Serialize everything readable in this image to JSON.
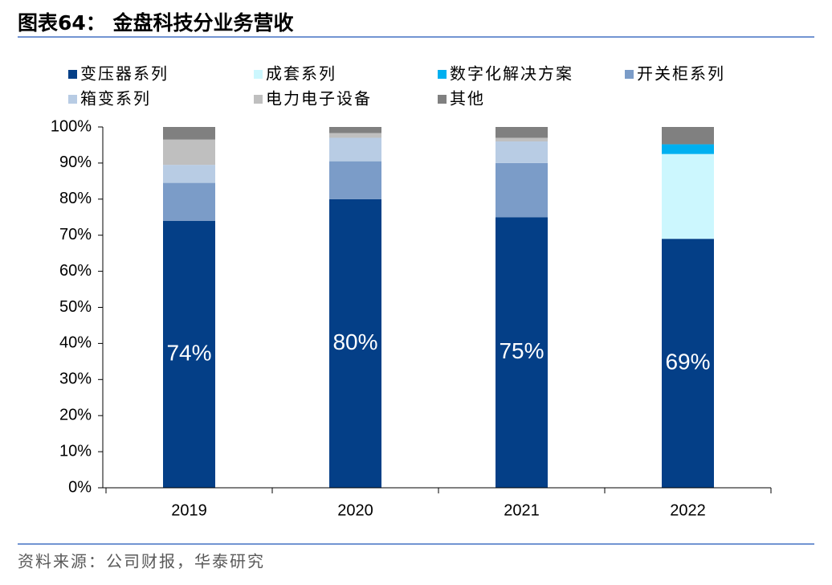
{
  "chart_data": {
    "type": "stacked_bar",
    "title": "图表64： 金盘科技分业务营收",
    "source": "资料来源：公司财报，华泰研究",
    "categories": [
      "2019",
      "2020",
      "2021",
      "2022"
    ],
    "series": [
      {
        "name": "变压器系列",
        "color": "#043f87",
        "values": [
          74,
          80,
          75,
          69
        ],
        "value_labels": [
          "74%",
          "80%",
          "75%",
          "69%"
        ]
      },
      {
        "name": "成套系列",
        "color": "#ccf7fe",
        "values": [
          null,
          null,
          null,
          23.5
        ]
      },
      {
        "name": "数字化解决方案",
        "color": "#00b0f0",
        "values": [
          null,
          null,
          null,
          2.7
        ]
      },
      {
        "name": "开关柜系列",
        "color": "#7b9cc8",
        "values": [
          10.5,
          10.5,
          15,
          null
        ]
      },
      {
        "name": "箱变系列",
        "color": "#b8cce4",
        "values": [
          5,
          6.5,
          6,
          null
        ]
      },
      {
        "name": "电力电子设备",
        "color": "#bfbfbf",
        "values": [
          7,
          1.3,
          1,
          null
        ]
      },
      {
        "name": "其他",
        "color": "#808080",
        "values": [
          3.5,
          1.7,
          3,
          4.8
        ]
      }
    ],
    "ylim": [
      0,
      100
    ],
    "yticks": [
      {
        "value": 0,
        "label": "0%"
      },
      {
        "value": 10,
        "label": "10%"
      },
      {
        "value": 20,
        "label": "20%"
      },
      {
        "value": 30,
        "label": "30%"
      },
      {
        "value": 40,
        "label": "40%"
      },
      {
        "value": 50,
        "label": "50%"
      },
      {
        "value": 60,
        "label": "60%"
      },
      {
        "value": 70,
        "label": "70%"
      },
      {
        "value": 80,
        "label": "80%"
      },
      {
        "value": 90,
        "label": "90%"
      },
      {
        "value": 100,
        "label": "100%"
      }
    ]
  }
}
